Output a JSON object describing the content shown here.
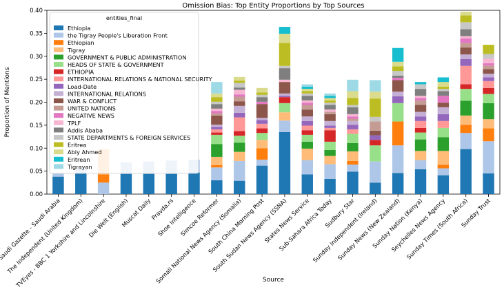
{
  "chart_data": {
    "type": "bar",
    "stacked": true,
    "title": "Omission Bias: Top Entity Proportions by Top Sources",
    "xlabel": "Source",
    "ylabel": "Proportion of Mentions",
    "ylim": [
      0,
      0.4
    ],
    "yticks": [
      0.0,
      0.05,
      0.1,
      0.15,
      0.2,
      0.25,
      0.3,
      0.35,
      0.4
    ],
    "ytick_labels": [
      "0.00",
      "0.05",
      "0.10",
      "0.15",
      "0.20",
      "0.25",
      "0.30",
      "0.35",
      "0.40"
    ],
    "grid": false,
    "legend": {
      "title": "entities_final",
      "placement": "upper-left"
    },
    "categories": [
      "Saudi Gazette - Saudi Arabia",
      "The Independent (United Kingdom)",
      "TVEyes - BBC 1 Yorkshire and Lincolnshire",
      "Die Welt (English)",
      "Muscat Daily",
      "Pravda.rs",
      "Shoe Intelligence",
      "Simcoe Reformer",
      "Somali National News Agency (Somalia)",
      "South China Morning Post",
      "South Sudan News Agency (SSNA)",
      "States News Service",
      "Sub-Sahara Africa Today",
      "Sudbury Star",
      "Sunday Independent (Ireland)",
      "Sunday News (New Zealand)",
      "Sunday Nation (Kenya)",
      "Seychelles News Agency",
      "Sunday Times (South Africa)",
      "Sunday Trust"
    ],
    "series": [
      {
        "name": "Ethiopia",
        "color": "#1f77b4",
        "values": [
          0.038,
          0.045,
          0.0,
          0.044,
          0.044,
          0.044,
          0.047,
          0.03,
          0.029,
          0.062,
          0.135,
          0.043,
          0.033,
          0.049,
          0.025,
          0.046,
          0.054,
          0.041,
          0.098,
          0.045
        ]
      },
      {
        "name": "the Tigray People's Liberation Front",
        "color": "#aec7e8",
        "values": [
          0.007,
          0.01,
          0.025,
          0.025,
          0.027,
          0.029,
          0.028,
          0.028,
          0.043,
          0.013,
          0.025,
          0.031,
          0.032,
          0.015,
          0.046,
          0.06,
          0.02,
          0.015,
          0.035,
          0.07
        ]
      },
      {
        "name": "Ethiopian",
        "color": "#ff7f0e",
        "values": [
          0.0,
          0.0,
          0.018,
          0.0,
          0.0,
          0.0,
          0.0,
          0.005,
          0.0,
          0.025,
          0.0,
          0.0,
          0.0,
          0.008,
          0.0,
          0.052,
          0.0,
          0.008,
          0.018,
          0.028
        ]
      },
      {
        "name": "Tigray",
        "color": "#ffbb78",
        "values": [
          0.0,
          0.0,
          0.055,
          0.0,
          0.0,
          0.0,
          0.0,
          0.018,
          0.02,
          0.018,
          0.018,
          0.025,
          0.018,
          0.021,
          0.0,
          0.0,
          0.02,
          0.03,
          0.02,
          0.02
        ]
      },
      {
        "name": "GOVERNMENT & PUBLIC ADMINISTRATION",
        "color": "#2ca02c",
        "values": [
          0.0,
          0.0,
          0.0,
          0.0,
          0.0,
          0.0,
          0.0,
          0.028,
          0.02,
          0.0,
          0.0,
          0.015,
          0.013,
          0.018,
          0.0,
          0.0,
          0.025,
          0.03,
          0.032,
          0.035
        ]
      },
      {
        "name": "HEADS OF STATE & GOVERNMENT",
        "color": "#98df8a",
        "values": [
          0.0,
          0.0,
          0.0,
          0.0,
          0.0,
          0.0,
          0.0,
          0.02,
          0.015,
          0.015,
          0.02,
          0.015,
          0.018,
          0.02,
          0.035,
          0.04,
          0.015,
          0.02,
          0.026,
          0.02
        ]
      },
      {
        "name": "ETHIOPIA",
        "color": "#d62728",
        "values": [
          0.0,
          0.0,
          0.0,
          0.0,
          0.0,
          0.0,
          0.0,
          0.005,
          0.01,
          0.01,
          0.013,
          0.01,
          0.025,
          0.0,
          0.012,
          0.0,
          0.01,
          0.0,
          0.01,
          0.013
        ]
      },
      {
        "name": "INTERNATIONAL RELATIONS & NATIONAL SECURITY",
        "color": "#ff9896",
        "values": [
          0.0,
          0.0,
          0.0,
          0.0,
          0.0,
          0.0,
          0.0,
          0.007,
          0.03,
          0.01,
          0.0,
          0.01,
          0.005,
          0.01,
          0.0,
          0.0,
          0.015,
          0.015,
          0.04,
          0.015
        ]
      },
      {
        "name": "Load-Date",
        "color": "#9467bd",
        "values": [
          0.0,
          0.0,
          0.0,
          0.0,
          0.0,
          0.0,
          0.0,
          0.005,
          0.01,
          0.008,
          0.003,
          0.01,
          0.005,
          0.01,
          0.01,
          0.015,
          0.01,
          0.015,
          0.015,
          0.008
        ]
      },
      {
        "name": "INTERNATIONAL RELATIONS",
        "color": "#c5b0d5",
        "values": [
          0.0,
          0.0,
          0.0,
          0.0,
          0.0,
          0.0,
          0.0,
          0.005,
          0.015,
          0.005,
          0.005,
          0.01,
          0.01,
          0.008,
          0.0,
          0.01,
          0.01,
          0.015,
          0.01,
          0.008
        ]
      },
      {
        "name": "WAR & CONFLICT",
        "color": "#8c564b",
        "values": [
          0.0,
          0.0,
          0.0,
          0.0,
          0.0,
          0.0,
          0.0,
          0.02,
          0.01,
          0.03,
          0.025,
          0.015,
          0.015,
          0.0,
          0.01,
          0.025,
          0.015,
          0.01,
          0.015,
          0.01
        ]
      },
      {
        "name": "UNITED NATIONS",
        "color": "#c49c94",
        "values": [
          0.0,
          0.0,
          0.0,
          0.0,
          0.0,
          0.0,
          0.0,
          0.005,
          0.01,
          0.0,
          0.0,
          0.01,
          0.005,
          0.005,
          0.02,
          0.0,
          0.01,
          0.0,
          0.01,
          0.008
        ]
      },
      {
        "name": "NEGATIVE NEWS",
        "color": "#e377c2",
        "values": [
          0.0,
          0.0,
          0.0,
          0.0,
          0.0,
          0.0,
          0.0,
          0.005,
          0.005,
          0.005,
          0.0,
          0.005,
          0.0,
          0.005,
          0.0,
          0.005,
          0.005,
          0.015,
          0.01,
          0.005
        ]
      },
      {
        "name": "TPLF",
        "color": "#f7b6d2",
        "values": [
          0.0,
          0.0,
          0.0,
          0.0,
          0.0,
          0.0,
          0.0,
          0.005,
          0.01,
          0.0,
          0.005,
          0.005,
          0.005,
          0.005,
          0.0,
          0.0,
          0.005,
          0.0,
          0.005,
          0.01
        ]
      },
      {
        "name": "Addis Ababa",
        "color": "#7f7f7f",
        "values": [
          0.0,
          0.0,
          0.0,
          0.0,
          0.0,
          0.0,
          0.0,
          0.01,
          0.005,
          0.01,
          0.025,
          0.01,
          0.01,
          0.015,
          0.0,
          0.005,
          0.015,
          0.01,
          0.015,
          0.0
        ]
      },
      {
        "name": "STATE DEPARTMENTS & FOREIGN SERVICES",
        "color": "#c7c7c7",
        "values": [
          0.0,
          0.0,
          0.0,
          0.0,
          0.0,
          0.0,
          0.0,
          0.005,
          0.01,
          0.005,
          0.005,
          0.005,
          0.005,
          0.005,
          0.01,
          0.01,
          0.01,
          0.005,
          0.015,
          0.01
        ]
      },
      {
        "name": "Eritrea",
        "color": "#bcbd22",
        "values": [
          0.0,
          0.0,
          0.0,
          0.0,
          0.0,
          0.0,
          0.0,
          0.01,
          0.005,
          0.005,
          0.05,
          0.005,
          0.005,
          0.015,
          0.04,
          0.01,
          0.0,
          0.005,
          0.015,
          0.02
        ]
      },
      {
        "name": "Abiy Ahmed",
        "color": "#dbdb8d",
        "values": [
          0.0,
          0.0,
          0.0,
          0.0,
          0.0,
          0.0,
          0.0,
          0.008,
          0.008,
          0.01,
          0.02,
          0.005,
          0.005,
          0.015,
          0.015,
          0.01,
          0.0,
          0.01,
          0.008,
          0.0
        ]
      },
      {
        "name": "Eritrean",
        "color": "#17becf",
        "values": [
          0.0,
          0.0,
          0.0,
          0.0,
          0.0,
          0.0,
          0.0,
          0.0,
          0.0,
          0.0,
          0.015,
          0.005,
          0.005,
          0.0,
          0.0,
          0.03,
          0.005,
          0.01,
          0.0,
          0.0
        ]
      },
      {
        "name": "Tigrayan",
        "color": "#9edae5",
        "values": [
          0.0,
          0.0,
          0.0,
          0.0,
          0.0,
          0.0,
          0.0,
          0.025,
          0.0,
          0.0,
          0.0,
          0.005,
          0.005,
          0.025,
          0.025,
          0.0,
          0.0,
          0.0,
          0.0,
          0.0
        ]
      }
    ]
  }
}
